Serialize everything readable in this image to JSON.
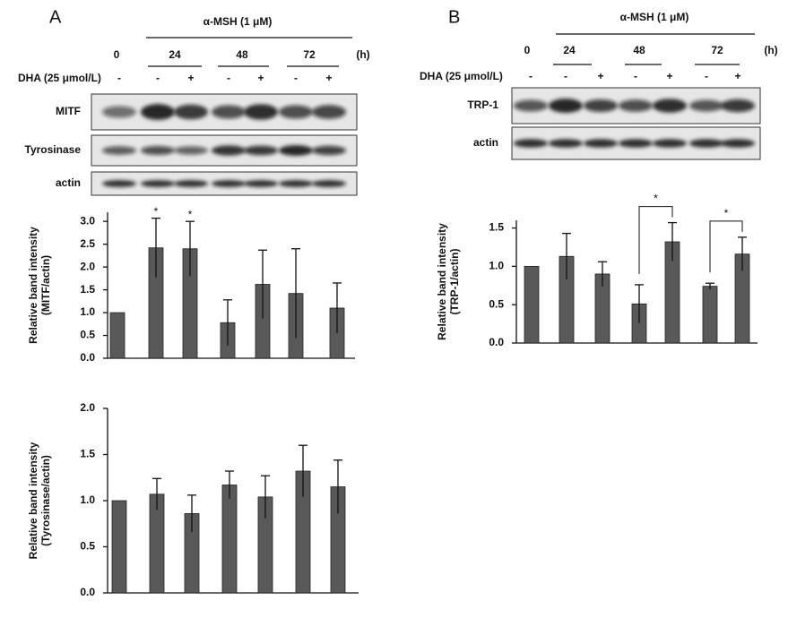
{
  "panels": [
    {
      "label": "A",
      "treatment": "α-MSH (1 μM)",
      "times": [
        "0",
        "24",
        "48",
        "72"
      ],
      "unit": "(h)",
      "dha_label": "DHA (25 μmol/L)",
      "dha_signs": [
        "-",
        "-",
        "+",
        "-",
        "+",
        "-",
        "+"
      ],
      "blots": [
        "MITF",
        "Tyrosinase",
        "actin"
      ]
    },
    {
      "label": "B",
      "treatment": "α-MSH (1 μM)",
      "times": [
        "0",
        "24",
        "48",
        "72"
      ],
      "unit": "(h)",
      "dha_label": "DHA (25 μmol/L)",
      "dha_signs": [
        "-",
        "-",
        "+",
        "-",
        "+",
        "-",
        "+"
      ],
      "blots": [
        "TRP-1",
        "actin"
      ]
    }
  ],
  "chart_data": [
    {
      "type": "bar",
      "ylabel": [
        "Relative band intensity",
        "(MITF/actin)"
      ],
      "color": "#595959",
      "values": [
        1.0,
        2.42,
        2.4,
        0.78,
        1.62,
        1.42,
        1.1
      ],
      "errors": [
        null,
        0.65,
        0.6,
        0.5,
        0.75,
        0.98,
        0.55
      ],
      "ylim": [
        0,
        3.2
      ],
      "yticks": [
        {
          "value": 0,
          "label": "0.0"
        },
        {
          "value": 0.5,
          "label": "0.5"
        },
        {
          "value": 1,
          "label": "1.0"
        },
        {
          "value": 1.5,
          "label": "1.5"
        },
        {
          "value": 2,
          "label": "2.0"
        },
        {
          "value": 2.5,
          "label": "2.5"
        },
        {
          "value": 3,
          "label": "3.0"
        }
      ],
      "stars": [
        {
          "text": "*",
          "bar": 1
        },
        {
          "text": "*",
          "bar": 2
        }
      ]
    },
    {
      "type": "bar",
      "ylabel": [
        "Relative band intensity",
        "(Tyrosinase/actin)"
      ],
      "color": "#595959",
      "values": [
        1.0,
        1.07,
        0.86,
        1.17,
        1.04,
        1.32,
        1.15
      ],
      "errors": [
        null,
        0.17,
        0.2,
        0.15,
        0.23,
        0.28,
        0.29
      ],
      "ylim": [
        0,
        2
      ],
      "yticks": [
        {
          "value": 0,
          "label": "0.0"
        },
        {
          "value": 0.5,
          "label": "0.5"
        },
        {
          "value": 1,
          "label": "1.0"
        },
        {
          "value": 1.5,
          "label": "1.5"
        },
        {
          "value": 2,
          "label": "2.0"
        }
      ]
    },
    {
      "type": "bar",
      "ylabel": [
        "Relative band intensity",
        "(TRP-1/actin)"
      ],
      "color": "#595959",
      "values": [
        1.0,
        1.13,
        0.9,
        0.51,
        1.32,
        0.74,
        1.16
      ],
      "errors": [
        null,
        0.3,
        0.16,
        0.25,
        0.25,
        0.04,
        0.22
      ],
      "ylim": [
        0,
        1.6
      ],
      "yticks": [
        {
          "value": 0,
          "label": "0.0"
        },
        {
          "value": 0.5,
          "label": "0.5"
        },
        {
          "value": 1,
          "label": "1.0"
        },
        {
          "value": 1.5,
          "label": "1.5"
        }
      ],
      "brackets": [
        {
          "text": "*",
          "bars": [
            3,
            4
          ]
        },
        {
          "text": "*",
          "bars": [
            5,
            6
          ]
        }
      ]
    }
  ]
}
